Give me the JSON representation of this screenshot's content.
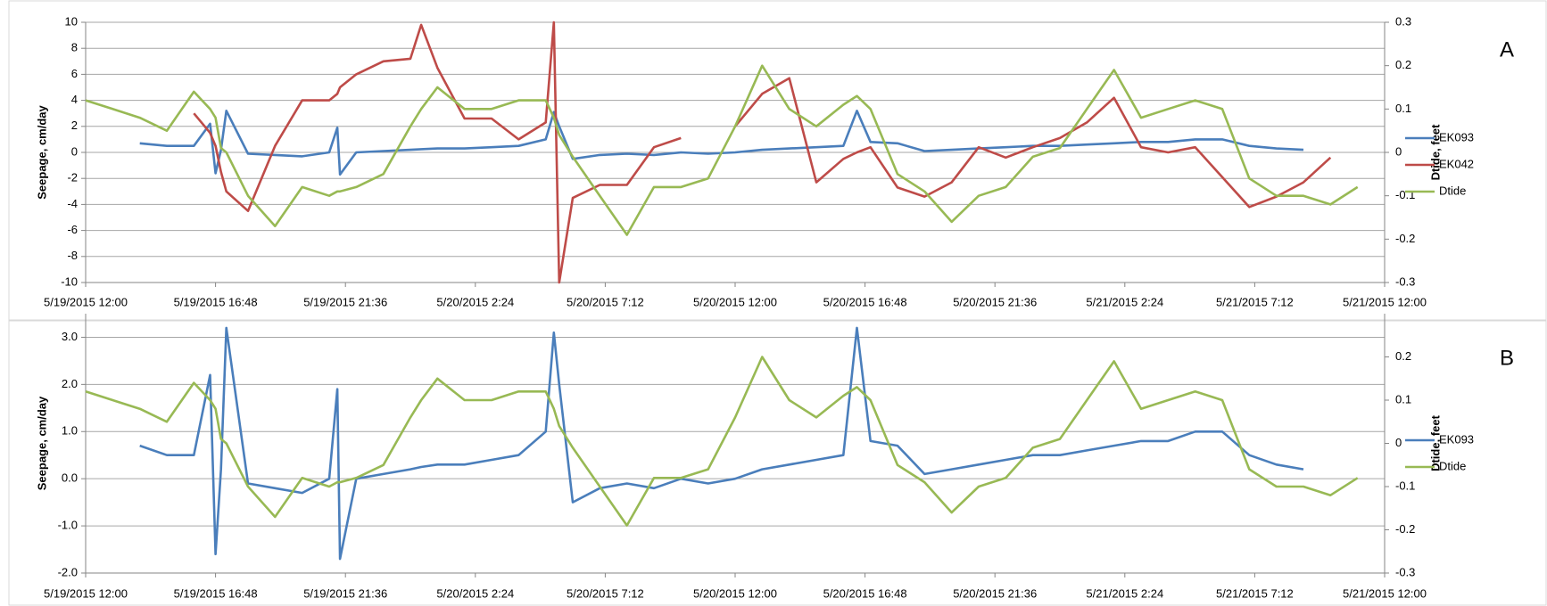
{
  "chart_data": [
    {
      "type": "line",
      "panel_label": "A",
      "y_label": "Seepage, cm/day",
      "y2_label": "Dtide, feet",
      "grid": true,
      "x": [
        "5/19/2015 12:00",
        "5/19/2015 13:00",
        "5/19/2015 14:00",
        "5/19/2015 15:00",
        "5/19/2015 16:00",
        "5/19/2015 16:36",
        "5/19/2015 16:48",
        "5/19/2015 17:00",
        "5/19/2015 17:12",
        "5/19/2015 18:00",
        "5/19/2015 19:00",
        "5/19/2015 20:00",
        "5/19/2015 21:00",
        "5/19/2015 21:18",
        "5/19/2015 21:24",
        "5/19/2015 22:00",
        "5/19/2015 23:00",
        "5/20/2015 0:00",
        "5/20/2015 0:24",
        "5/20/2015 1:00",
        "5/20/2015 2:00",
        "5/20/2015 3:00",
        "5/20/2015 4:00",
        "5/20/2015 5:00",
        "5/20/2015 5:18",
        "5/20/2015 5:30",
        "5/20/2015 6:00",
        "5/20/2015 7:00",
        "5/20/2015 8:00",
        "5/20/2015 9:00",
        "5/20/2015 10:00",
        "5/20/2015 11:00",
        "5/20/2015 12:00",
        "5/20/2015 13:00",
        "5/20/2015 14:00",
        "5/20/2015 15:00",
        "5/20/2015 16:00",
        "5/20/2015 16:30",
        "5/20/2015 17:00",
        "5/20/2015 18:00",
        "5/20/2015 19:00",
        "5/20/2015 20:00",
        "5/20/2015 21:00",
        "5/20/2015 22:00",
        "5/20/2015 23:00",
        "5/21/2015 0:00",
        "5/21/2015 1:00",
        "5/21/2015 2:00",
        "5/21/2015 3:00",
        "5/21/2015 4:00",
        "5/21/2015 5:00",
        "5/21/2015 6:00",
        "5/21/2015 7:00",
        "5/21/2015 8:00",
        "5/21/2015 9:00",
        "5/21/2015 10:00",
        "5/21/2015 11:00"
      ],
      "xlim": [
        "5/19/2015 12:00",
        "5/21/2015 12:00"
      ],
      "xticks": [
        "5/19/2015 12:00",
        "5/19/2015 16:48",
        "5/19/2015 21:36",
        "5/20/2015 2:24",
        "5/20/2015 7:12",
        "5/20/2015 12:00",
        "5/20/2015 16:48",
        "5/20/2015 21:36",
        "5/21/2015 2:24",
        "5/21/2015 7:12",
        "5/21/2015 12:00"
      ],
      "ylim": [
        -10,
        10
      ],
      "yticks": [
        -10,
        -8,
        -6,
        -4,
        -2,
        0,
        2,
        4,
        6,
        8,
        10
      ],
      "y2lim": [
        -0.3,
        0.3
      ],
      "y2ticks": [
        -0.3,
        -0.2,
        -0.1,
        0,
        0.1,
        0.2,
        0.3
      ],
      "series": [
        {
          "name": "EK093",
          "color": "#4a7ebb",
          "values": [
            null,
            null,
            0.7,
            0.5,
            0.5,
            2.2,
            -1.6,
            0.2,
            3.2,
            -0.1,
            -0.2,
            -0.3,
            0,
            1.9,
            -1.7,
            0,
            0.1,
            0.2,
            0.25,
            0.3,
            0.3,
            0.4,
            0.5,
            1.0,
            3.1,
            2.0,
            -0.5,
            -0.2,
            -0.1,
            -0.2,
            0,
            -0.1,
            0,
            0.2,
            0.3,
            0.4,
            0.5,
            3.2,
            0.8,
            0.7,
            0.1,
            0.2,
            0.3,
            0.4,
            0.5,
            0.5,
            0.6,
            0.7,
            0.8,
            0.8,
            1.0,
            1.0,
            0.5,
            0.3,
            0.2,
            null,
            null
          ]
        },
        {
          "name": "EK042",
          "color": "#be4b48",
          "values": [
            null,
            null,
            null,
            null,
            3,
            1.5,
            0.5,
            -1.5,
            -3,
            -4.5,
            0.5,
            4,
            4,
            4.5,
            5,
            6,
            7,
            7.2,
            9.8,
            6.5,
            2.6,
            2.6,
            1,
            2.3,
            10,
            -10,
            -3.5,
            -2.5,
            -2.5,
            0.4,
            1.1,
            null,
            2,
            4.5,
            5.7,
            -2.3,
            -0.5,
            0,
            0.4,
            -2.7,
            -3.4,
            -2.3,
            0.4,
            -0.4,
            0.4,
            1.1,
            2.3,
            4.2,
            0.4,
            0,
            0.4,
            -1.9,
            -4.2,
            -3.4,
            -2.3,
            -0.4,
            null
          ]
        },
        {
          "name": "Dtide",
          "color": "#98b954",
          "axis": "y2",
          "values": [
            0.12,
            0.1,
            0.08,
            0.05,
            0.14,
            0.1,
            0.08,
            0.01,
            0,
            -0.1,
            -0.17,
            -0.08,
            -0.1,
            -0.09,
            -0.09,
            -0.08,
            -0.05,
            0.06,
            0.1,
            0.15,
            0.1,
            0.1,
            0.12,
            0.12,
            0.08,
            0.04,
            -0.01,
            -0.1,
            -0.19,
            -0.08,
            -0.08,
            -0.06,
            0.06,
            0.2,
            0.1,
            0.06,
            0.11,
            0.13,
            0.1,
            -0.05,
            -0.09,
            -0.16,
            -0.1,
            -0.08,
            -0.01,
            0.01,
            0.1,
            0.19,
            0.08,
            0.1,
            0.12,
            0.1,
            -0.06,
            -0.1,
            -0.1,
            -0.12,
            -0.08
          ]
        }
      ]
    },
    {
      "type": "line",
      "panel_label": "B",
      "y_label": "Seepage, cm/day",
      "y2_label": "Dtide, feet",
      "grid": true,
      "x": [
        "5/19/2015 12:00",
        "5/19/2015 13:00",
        "5/19/2015 14:00",
        "5/19/2015 15:00",
        "5/19/2015 16:00",
        "5/19/2015 16:36",
        "5/19/2015 16:48",
        "5/19/2015 17:00",
        "5/19/2015 17:12",
        "5/19/2015 18:00",
        "5/19/2015 19:00",
        "5/19/2015 20:00",
        "5/19/2015 21:00",
        "5/19/2015 21:18",
        "5/19/2015 21:24",
        "5/19/2015 22:00",
        "5/19/2015 23:00",
        "5/20/2015 0:00",
        "5/20/2015 0:24",
        "5/20/2015 1:00",
        "5/20/2015 2:00",
        "5/20/2015 3:00",
        "5/20/2015 4:00",
        "5/20/2015 5:00",
        "5/20/2015 5:18",
        "5/20/2015 5:30",
        "5/20/2015 6:00",
        "5/20/2015 7:00",
        "5/20/2015 8:00",
        "5/20/2015 9:00",
        "5/20/2015 10:00",
        "5/20/2015 11:00",
        "5/20/2015 12:00",
        "5/20/2015 13:00",
        "5/20/2015 14:00",
        "5/20/2015 15:00",
        "5/20/2015 16:00",
        "5/20/2015 16:30",
        "5/20/2015 17:00",
        "5/20/2015 18:00",
        "5/20/2015 19:00",
        "5/20/2015 20:00",
        "5/20/2015 21:00",
        "5/20/2015 22:00",
        "5/20/2015 23:00",
        "5/21/2015 0:00",
        "5/21/2015 1:00",
        "5/21/2015 2:00",
        "5/21/2015 3:00",
        "5/21/2015 4:00",
        "5/21/2015 5:00",
        "5/21/2015 6:00",
        "5/21/2015 7:00",
        "5/21/2015 8:00",
        "5/21/2015 9:00",
        "5/21/2015 10:00",
        "5/21/2015 11:00"
      ],
      "xlim": [
        "5/19/2015 12:00",
        "5/21/2015 12:00"
      ],
      "xticks": [
        "5/19/2015 12:00",
        "5/19/2015 16:48",
        "5/19/2015 21:36",
        "5/20/2015 2:24",
        "5/20/2015 7:12",
        "5/20/2015 12:00",
        "5/20/2015 16:48",
        "5/20/2015 21:36",
        "5/21/2015 2:24",
        "5/21/2015 7:12",
        "5/21/2015 12:00"
      ],
      "ylim": [
        -2,
        3.5
      ],
      "yticks": [
        {
          "value": -2,
          "label": "-2.0"
        },
        {
          "value": -1,
          "label": "-1.0"
        },
        {
          "value": 0,
          "label": "0.0"
        },
        {
          "value": 1,
          "label": "1.0"
        },
        {
          "value": 2,
          "label": "2.0"
        },
        {
          "value": 3,
          "label": "3.0"
        }
      ],
      "y2lim": [
        -0.3,
        0.3
      ],
      "y2ticks": [
        -0.3,
        -0.2,
        -0.1,
        0,
        0.1,
        0.2
      ],
      "series": [
        {
          "name": "EK093",
          "color": "#4a7ebb",
          "values": [
            null,
            null,
            0.7,
            0.5,
            0.5,
            2.2,
            -1.6,
            0.2,
            3.2,
            -0.1,
            -0.2,
            -0.3,
            0,
            1.9,
            -1.7,
            0,
            0.1,
            0.2,
            0.25,
            0.3,
            0.3,
            0.4,
            0.5,
            1.0,
            3.1,
            2.0,
            -0.5,
            -0.2,
            -0.1,
            -0.2,
            0,
            -0.1,
            0,
            0.2,
            0.3,
            0.4,
            0.5,
            3.2,
            0.8,
            0.7,
            0.1,
            0.2,
            0.3,
            0.4,
            0.5,
            0.5,
            0.6,
            0.7,
            0.8,
            0.8,
            1.0,
            1.0,
            0.5,
            0.3,
            0.2,
            null,
            null
          ]
        },
        {
          "name": "Dtide",
          "color": "#98b954",
          "axis": "y2",
          "values": [
            0.12,
            0.1,
            0.08,
            0.05,
            0.14,
            0.1,
            0.08,
            0.01,
            0,
            -0.1,
            -0.17,
            -0.08,
            -0.1,
            -0.09,
            -0.09,
            -0.08,
            -0.05,
            0.06,
            0.1,
            0.15,
            0.1,
            0.1,
            0.12,
            0.12,
            0.08,
            0.04,
            -0.01,
            -0.1,
            -0.19,
            -0.08,
            -0.08,
            -0.06,
            0.06,
            0.2,
            0.1,
            0.06,
            0.11,
            0.13,
            0.1,
            -0.05,
            -0.09,
            -0.16,
            -0.1,
            -0.08,
            -0.01,
            0.01,
            0.1,
            0.19,
            0.08,
            0.1,
            0.12,
            0.1,
            -0.06,
            -0.1,
            -0.1,
            -0.12,
            -0.08
          ]
        }
      ]
    }
  ]
}
